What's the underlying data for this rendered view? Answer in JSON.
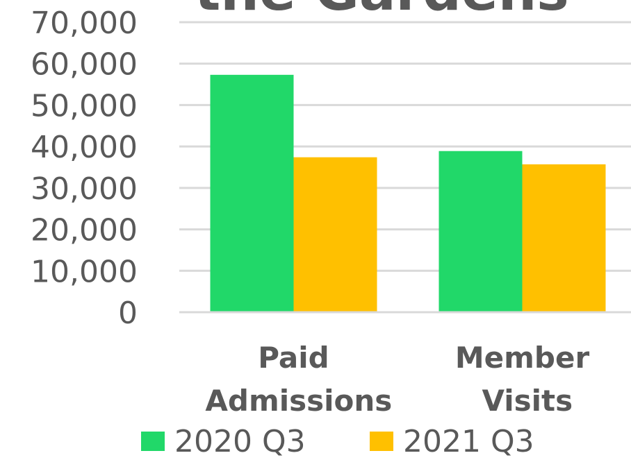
{
  "chart_data": {
    "type": "bar",
    "title": "the Gardens",
    "categories": [
      "Paid Admissions",
      "Member Visits"
    ],
    "series": [
      {
        "name": "2020 Q3",
        "color": "#21d869",
        "values": [
          57300,
          38900
        ]
      },
      {
        "name": "2021 Q3",
        "color": "#ffc000",
        "values": [
          37400,
          35700
        ]
      }
    ],
    "ylim": [
      0,
      70000
    ],
    "yticks": [
      0,
      {
        "value": 10000,
        "label": "10,000"
      },
      {
        "value": 20000,
        "label": "20,000"
      },
      {
        "value": 30000,
        "label": "30,000"
      },
      {
        "value": 40000,
        "label": "40,000"
      },
      {
        "value": 50000,
        "label": "50,000"
      },
      {
        "value": 60000,
        "label": "60,000"
      },
      {
        "value": 70000,
        "label": "70,000"
      }
    ],
    "grid": true,
    "legend": "bottom"
  }
}
